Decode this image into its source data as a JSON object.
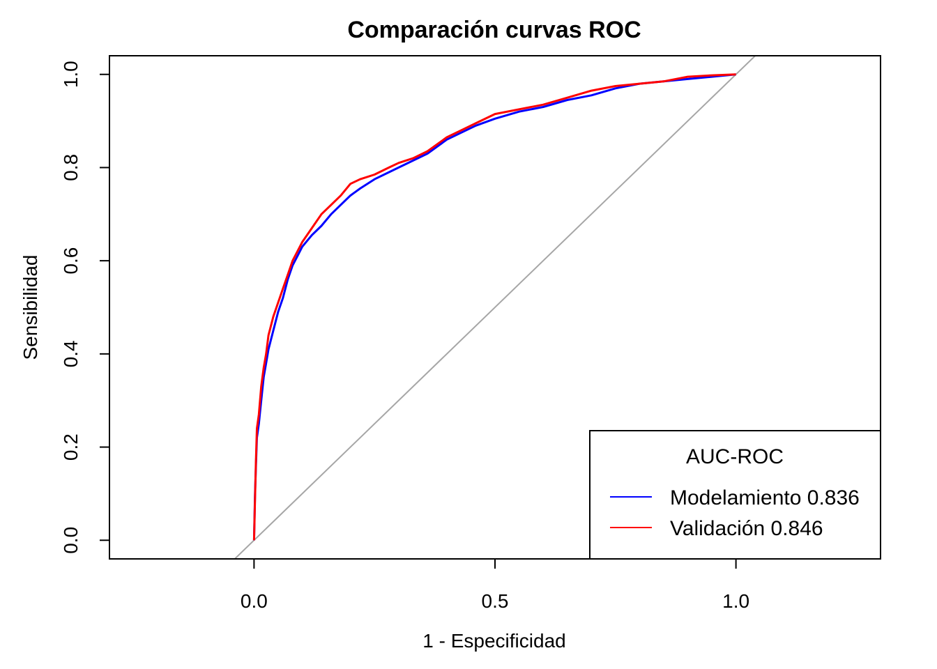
{
  "chart_data": {
    "type": "line",
    "title": "Comparación curvas ROC",
    "xlabel": "1 - Especificidad",
    "ylabel": "Sensibilidad",
    "xlim": [
      -0.3,
      1.3
    ],
    "ylim": [
      -0.04,
      1.04
    ],
    "x_ticks": [
      0.0,
      0.5,
      1.0
    ],
    "x_tick_labels": [
      "0.0",
      "0.5",
      "1.0"
    ],
    "y_ticks": [
      0.0,
      0.2,
      0.4,
      0.6,
      0.8,
      1.0
    ],
    "y_tick_labels": [
      "0.0",
      "0.2",
      "0.4",
      "0.6",
      "0.8",
      "1.0"
    ],
    "grid": false,
    "reference_line": {
      "from": [
        -0.04,
        -0.04
      ],
      "to": [
        1.04,
        1.04
      ],
      "color": "#a6a6a6"
    },
    "legend": {
      "title": "AUC-ROC",
      "position": "bottom-right",
      "entries": [
        "Modelamiento 0.836",
        "Validación 0.846"
      ]
    },
    "series": [
      {
        "name": "Modelamiento 0.836",
        "color": "#0000ff",
        "x": [
          0,
          0.002,
          0.004,
          0.006,
          0.01,
          0.015,
          0.02,
          0.025,
          0.03,
          0.04,
          0.05,
          0.06,
          0.07,
          0.08,
          0.09,
          0.1,
          0.12,
          0.14,
          0.16,
          0.18,
          0.2,
          0.22,
          0.25,
          0.28,
          0.3,
          0.33,
          0.36,
          0.4,
          0.43,
          0.46,
          0.5,
          0.55,
          0.6,
          0.65,
          0.7,
          0.75,
          0.8,
          0.85,
          0.9,
          0.95,
          1.0
        ],
        "y": [
          0,
          0.1,
          0.16,
          0.22,
          0.25,
          0.3,
          0.35,
          0.38,
          0.41,
          0.45,
          0.49,
          0.52,
          0.56,
          0.59,
          0.61,
          0.63,
          0.655,
          0.675,
          0.7,
          0.72,
          0.74,
          0.755,
          0.775,
          0.79,
          0.8,
          0.815,
          0.83,
          0.86,
          0.875,
          0.89,
          0.905,
          0.92,
          0.93,
          0.945,
          0.955,
          0.97,
          0.98,
          0.985,
          0.99,
          0.995,
          1.0
        ]
      },
      {
        "name": "Validación 0.846",
        "color": "#ff0000",
        "x": [
          0,
          0.002,
          0.004,
          0.006,
          0.01,
          0.015,
          0.02,
          0.025,
          0.03,
          0.04,
          0.05,
          0.06,
          0.07,
          0.08,
          0.09,
          0.1,
          0.12,
          0.14,
          0.16,
          0.18,
          0.2,
          0.22,
          0.25,
          0.28,
          0.3,
          0.33,
          0.36,
          0.4,
          0.43,
          0.46,
          0.5,
          0.55,
          0.6,
          0.65,
          0.7,
          0.75,
          0.8,
          0.85,
          0.9,
          0.95,
          1.0
        ],
        "y": [
          0,
          0.09,
          0.17,
          0.24,
          0.27,
          0.33,
          0.37,
          0.4,
          0.44,
          0.48,
          0.51,
          0.54,
          0.57,
          0.6,
          0.62,
          0.64,
          0.67,
          0.7,
          0.72,
          0.74,
          0.765,
          0.775,
          0.785,
          0.8,
          0.81,
          0.82,
          0.835,
          0.865,
          0.88,
          0.895,
          0.915,
          0.925,
          0.935,
          0.95,
          0.965,
          0.975,
          0.98,
          0.985,
          0.995,
          0.998,
          1.0
        ]
      }
    ]
  }
}
